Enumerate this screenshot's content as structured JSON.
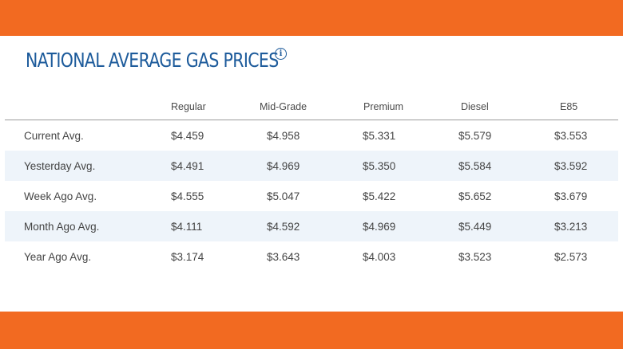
{
  "title": "NATIONAL AVERAGE GAS PRICES",
  "info_icon": "info-icon",
  "colors": {
    "banner": "#f26a21",
    "title": "#1d5b9b",
    "row_alt": "#eef4fa"
  },
  "table": {
    "columns": [
      "",
      "Regular",
      "Mid-Grade",
      "Premium",
      "Diesel",
      "E85"
    ],
    "rows": [
      {
        "label": "Current Avg.",
        "values": [
          "$4.459",
          "$4.958",
          "$5.331",
          "$5.579",
          "$3.553"
        ]
      },
      {
        "label": "Yesterday Avg.",
        "values": [
          "$4.491",
          "$4.969",
          "$5.350",
          "$5.584",
          "$3.592"
        ]
      },
      {
        "label": "Week Ago Avg.",
        "values": [
          "$4.555",
          "$5.047",
          "$5.422",
          "$5.652",
          "$3.679"
        ]
      },
      {
        "label": "Month Ago Avg.",
        "values": [
          "$4.111",
          "$4.592",
          "$4.969",
          "$5.449",
          "$3.213"
        ]
      },
      {
        "label": "Year Ago Avg.",
        "values": [
          "$3.174",
          "$3.643",
          "$4.003",
          "$3.523",
          "$2.573"
        ]
      }
    ]
  }
}
